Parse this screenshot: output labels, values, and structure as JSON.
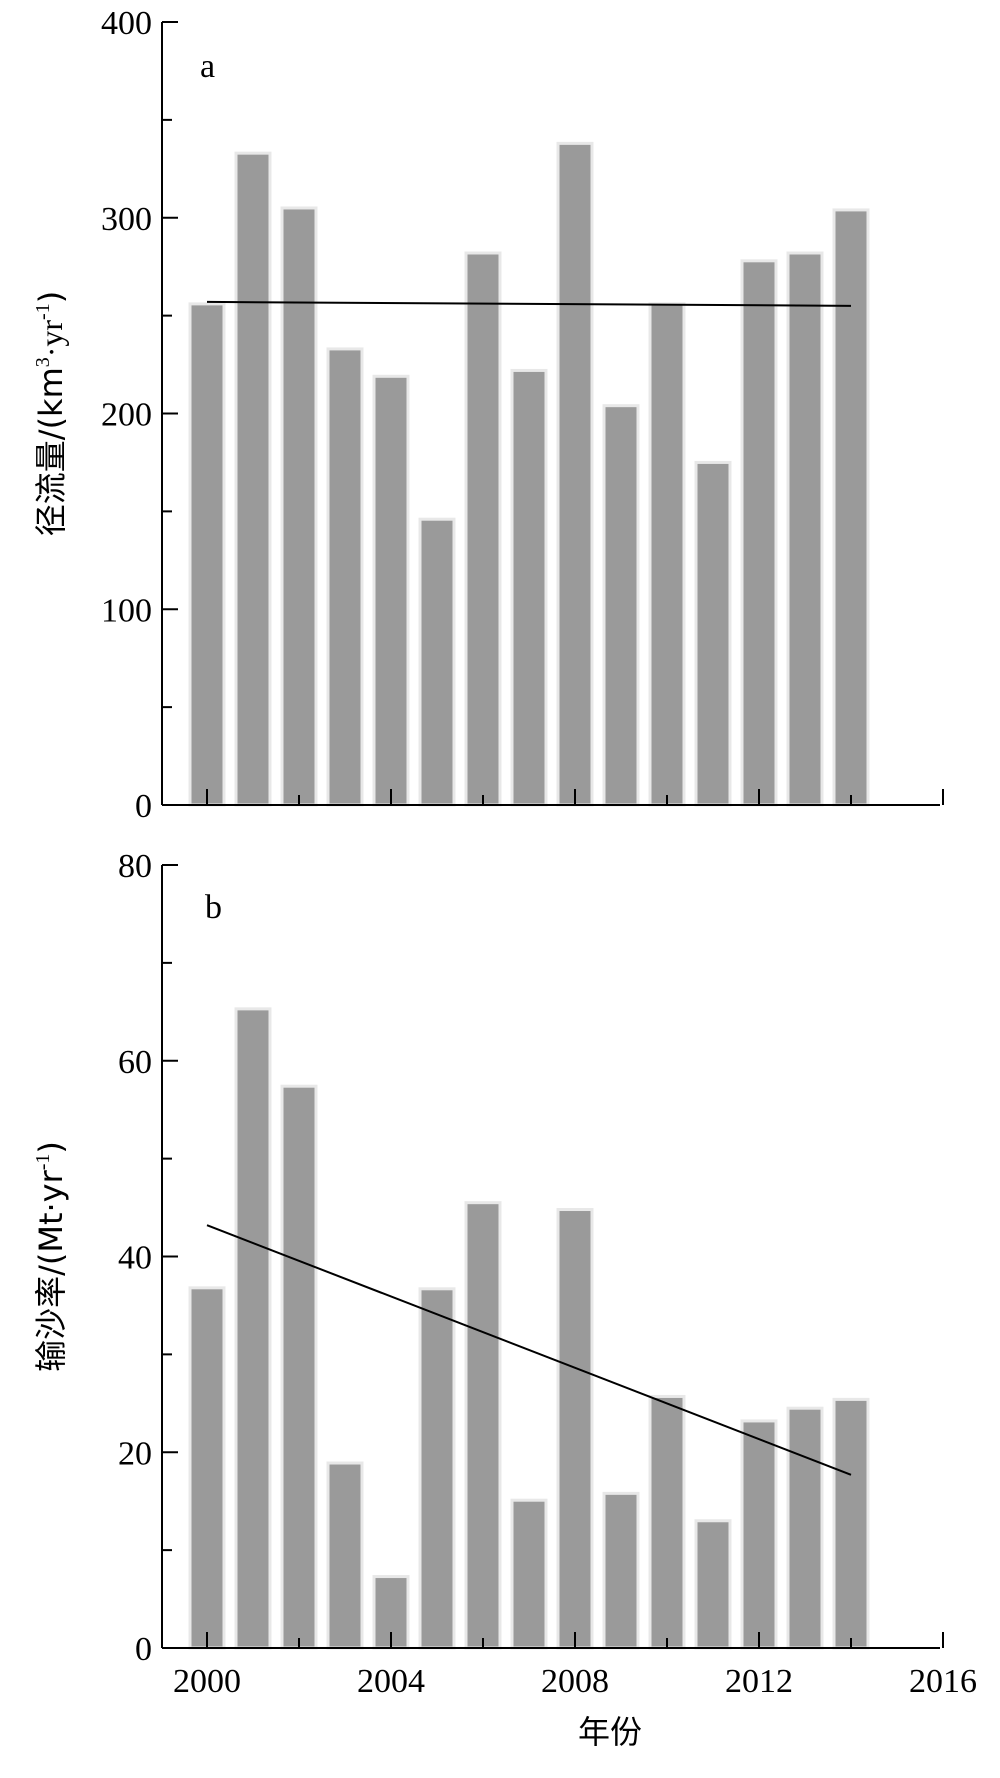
{
  "chart_data": [
    {
      "type": "bar",
      "panel_label": "a",
      "ylabel_main": "径流量/(km",
      "ylabel_sup1": "3",
      "ylabel_mid": "·yr",
      "ylabel_sup2": "-1",
      "ylabel_end": ")",
      "categories": [
        2000,
        2001,
        2002,
        2003,
        2004,
        2005,
        2006,
        2007,
        2008,
        2009,
        2010,
        2011,
        2012,
        2013,
        2014
      ],
      "values": [
        256,
        333,
        305,
        233,
        219,
        146,
        282,
        222,
        338,
        204,
        256,
        175,
        278,
        282,
        304
      ],
      "trend": {
        "x": [
          2000,
          2014
        ],
        "y": [
          257,
          255
        ]
      },
      "ylim": [
        0,
        400
      ],
      "yticks": [
        "0",
        "100",
        "200",
        "300",
        "400"
      ],
      "xlim": [
        1999,
        2016
      ],
      "xticks": [
        2000,
        2004,
        2008,
        2012,
        2016
      ],
      "grid": false
    },
    {
      "type": "bar",
      "panel_label": "b",
      "ylabel_main": "输沙率/(Mt·yr",
      "ylabel_sup1": "-1",
      "ylabel_end": ")",
      "xlabel": "年份",
      "categories": [
        2000,
        2001,
        2002,
        2003,
        2004,
        2005,
        2006,
        2007,
        2008,
        2009,
        2010,
        2011,
        2012,
        2013,
        2014
      ],
      "values": [
        36.8,
        65.3,
        57.4,
        18.9,
        7.3,
        36.7,
        45.5,
        15.1,
        44.8,
        15.8,
        25.7,
        13.0,
        23.2,
        24.5,
        25.4
      ],
      "trend": {
        "x": [
          2000,
          2014
        ],
        "y": [
          43.2,
          17.7
        ]
      },
      "ylim": [
        0,
        80
      ],
      "yticks": [
        "0",
        "20",
        "40",
        "60",
        "80"
      ],
      "xlim": [
        1999,
        2016
      ],
      "xticks": [
        "2000",
        "2004",
        "2008",
        "2012",
        "2016"
      ],
      "grid": false
    }
  ]
}
